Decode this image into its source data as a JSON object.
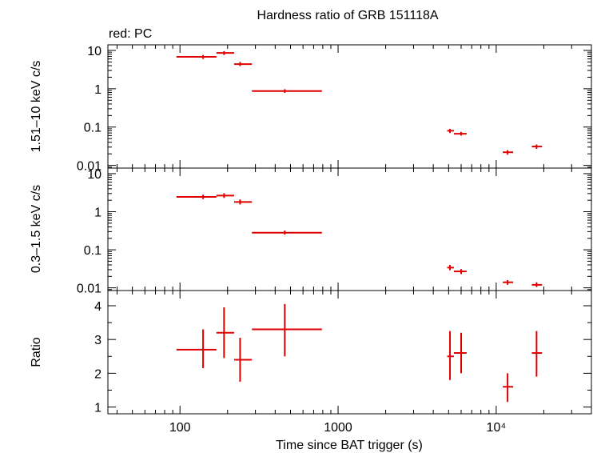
{
  "chart_data": {
    "type": "scatter",
    "title": "Hardness ratio of GRB 151118A",
    "subtitle": "red: PC",
    "xlabel": "Time since BAT trigger (s)",
    "xscale": "log",
    "xlim": [
      35,
      40000
    ],
    "xticks": [
      {
        "value": 100,
        "label": "100"
      },
      {
        "value": 1000,
        "label": "1000"
      },
      {
        "value": 10000,
        "label": "10⁴"
      }
    ],
    "series_color": "#e00000",
    "panels": [
      {
        "id": "hard",
        "ylabel": "1.51–10 keV c/s",
        "yscale": "log",
        "ylim": [
          0.0085,
          14
        ],
        "yticks": [
          {
            "value": 10,
            "label": "10"
          },
          {
            "value": 1,
            "label": "1"
          },
          {
            "value": 0.1,
            "label": "0.1"
          },
          {
            "value": 0.01,
            "label": "0.01"
          }
        ],
        "points": [
          {
            "x": 140,
            "xlo": 95,
            "xhi": 170,
            "y": 6.8,
            "ylo": 6.0,
            "yhi": 7.6
          },
          {
            "x": 190,
            "xlo": 170,
            "xhi": 220,
            "y": 8.6,
            "ylo": 7.6,
            "yhi": 9.6
          },
          {
            "x": 240,
            "xlo": 220,
            "xhi": 285,
            "y": 4.4,
            "ylo": 3.9,
            "yhi": 5.0
          },
          {
            "x": 460,
            "xlo": 285,
            "xhi": 790,
            "y": 0.87,
            "ylo": 0.78,
            "yhi": 0.97
          },
          {
            "x": 5100,
            "xlo": 4900,
            "xhi": 5400,
            "y": 0.08,
            "ylo": 0.07,
            "yhi": 0.09
          },
          {
            "x": 6000,
            "xlo": 5400,
            "xhi": 6500,
            "y": 0.067,
            "ylo": 0.06,
            "yhi": 0.075
          },
          {
            "x": 11800,
            "xlo": 11000,
            "xhi": 12800,
            "y": 0.022,
            "ylo": 0.019,
            "yhi": 0.025
          },
          {
            "x": 18000,
            "xlo": 16800,
            "xhi": 19500,
            "y": 0.031,
            "ylo": 0.027,
            "yhi": 0.035
          }
        ]
      },
      {
        "id": "soft",
        "ylabel": "0.3–1.5 keV c/s",
        "yscale": "log",
        "ylim": [
          0.0085,
          14
        ],
        "yticks": [
          {
            "value": 10,
            "label": "10"
          },
          {
            "value": 1,
            "label": "1"
          },
          {
            "value": 0.1,
            "label": "0.1"
          },
          {
            "value": 0.01,
            "label": "0.01"
          }
        ],
        "points": [
          {
            "x": 140,
            "xlo": 95,
            "xhi": 170,
            "y": 2.45,
            "ylo": 2.15,
            "yhi": 2.8
          },
          {
            "x": 190,
            "xlo": 170,
            "xhi": 220,
            "y": 2.65,
            "ylo": 2.3,
            "yhi": 3.05
          },
          {
            "x": 240,
            "xlo": 220,
            "xhi": 285,
            "y": 1.8,
            "ylo": 1.55,
            "yhi": 2.1
          },
          {
            "x": 460,
            "xlo": 285,
            "xhi": 790,
            "y": 0.28,
            "ylo": 0.25,
            "yhi": 0.32
          },
          {
            "x": 5100,
            "xlo": 4900,
            "xhi": 5400,
            "y": 0.034,
            "ylo": 0.029,
            "yhi": 0.04
          },
          {
            "x": 6000,
            "xlo": 5400,
            "xhi": 6500,
            "y": 0.027,
            "ylo": 0.023,
            "yhi": 0.031
          },
          {
            "x": 11800,
            "xlo": 11000,
            "xhi": 12800,
            "y": 0.014,
            "ylo": 0.012,
            "yhi": 0.016
          },
          {
            "x": 18000,
            "xlo": 16800,
            "xhi": 19500,
            "y": 0.012,
            "ylo": 0.0105,
            "yhi": 0.014
          }
        ]
      },
      {
        "id": "ratio",
        "ylabel": "Ratio",
        "yscale": "linear",
        "ylim": [
          0.8,
          4.45
        ],
        "yticks": [
          {
            "value": 1,
            "label": "1"
          },
          {
            "value": 2,
            "label": "2"
          },
          {
            "value": 3,
            "label": "3"
          },
          {
            "value": 4,
            "label": "4"
          }
        ],
        "points": [
          {
            "x": 140,
            "xlo": 95,
            "xhi": 170,
            "y": 2.7,
            "ylo": 2.15,
            "yhi": 3.3
          },
          {
            "x": 190,
            "xlo": 170,
            "xhi": 220,
            "y": 3.2,
            "ylo": 2.45,
            "yhi": 3.95
          },
          {
            "x": 240,
            "xlo": 220,
            "xhi": 285,
            "y": 2.4,
            "ylo": 1.75,
            "yhi": 3.05
          },
          {
            "x": 460,
            "xlo": 285,
            "xhi": 790,
            "y": 3.3,
            "ylo": 2.5,
            "yhi": 4.05
          },
          {
            "x": 5100,
            "xlo": 4900,
            "xhi": 5400,
            "y": 2.5,
            "ylo": 1.8,
            "yhi": 3.25
          },
          {
            "x": 6000,
            "xlo": 5400,
            "xhi": 6500,
            "y": 2.6,
            "ylo": 2.0,
            "yhi": 3.2
          },
          {
            "x": 11800,
            "xlo": 11000,
            "xhi": 12800,
            "y": 1.6,
            "ylo": 1.15,
            "yhi": 2.0
          },
          {
            "x": 18000,
            "xlo": 16800,
            "xhi": 19500,
            "y": 2.6,
            "ylo": 1.9,
            "yhi": 3.25
          }
        ]
      }
    ]
  }
}
